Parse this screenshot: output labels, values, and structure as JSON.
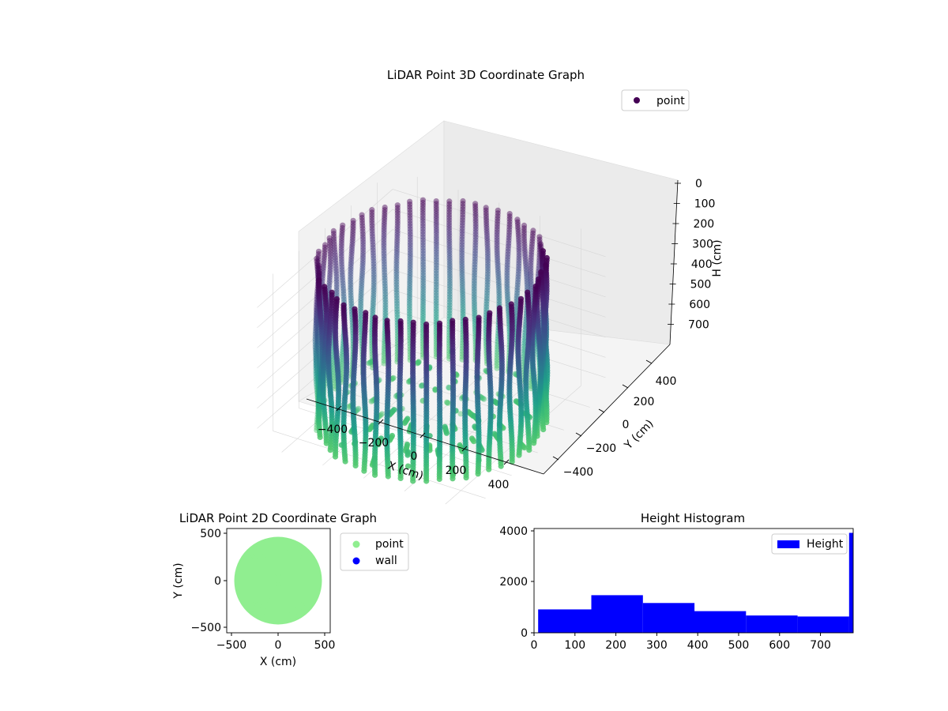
{
  "chart_data": [
    {
      "type": "scatter3d",
      "title": "LiDAR Point 3D Coordinate Graph",
      "xlabel": "X (cm)",
      "ylabel": "Y (cm)",
      "zlabel": "H (cm)",
      "xlim": [
        -520,
        520
      ],
      "ylim": [
        -520,
        520
      ],
      "zlim": [
        0,
        780
      ],
      "z_inverted": true,
      "x_ticks": [
        "−400",
        "−200",
        "0",
        "200",
        "400"
      ],
      "y_ticks": [
        "−400",
        "−200",
        "0",
        "200",
        "400"
      ],
      "z_ticks": [
        "0",
        "100",
        "200",
        "300",
        "400",
        "500",
        "600",
        "700"
      ],
      "colormap": "viridis (purple at H=0, green at bottom)",
      "legend": {
        "position": "top-right",
        "entries": [
          "point"
        ]
      },
      "series": [
        {
          "name": "point",
          "color_top": "#440154",
          "color_bottom": "#2db27d",
          "description_shape": "cylindrical wall of radius about 470, height 0 to 780",
          "radius": 470,
          "hmin": 0,
          "hmax": 780
        }
      ]
    },
    {
      "type": "scatter",
      "title": "LiDAR Point 2D Coordinate Graph",
      "xlabel": "X (cm)",
      "ylabel": "Y (cm)",
      "xlim": [
        -550,
        550
      ],
      "ylim": [
        -550,
        550
      ],
      "x_ticks": [
        "−500",
        "0",
        "500"
      ],
      "y_ticks": [
        "−500",
        "0",
        "500"
      ],
      "legend": {
        "position": "outside-right",
        "entries": [
          "point",
          "wall"
        ]
      },
      "series": [
        {
          "name": "point",
          "color": "#90ee90",
          "radius": 470
        },
        {
          "name": "wall",
          "color": "#0000ff",
          "points": []
        }
      ]
    },
    {
      "type": "bar",
      "title": "Height Histogram",
      "xlabel": "",
      "ylabel": "",
      "xlim": [
        0,
        780
      ],
      "ylim": [
        0,
        4100
      ],
      "x_ticks": [
        "0",
        "100",
        "200",
        "300",
        "400",
        "500",
        "600",
        "700"
      ],
      "y_ticks": [
        "0",
        "2000",
        "4000"
      ],
      "legend": {
        "position": "top-right",
        "entries": [
          "Height"
        ]
      },
      "series": [
        {
          "name": "Height",
          "color": "#0000ff",
          "bins": [
            {
              "x0": 10,
              "x1": 140,
              "value": 920
            },
            {
              "x0": 140,
              "x1": 266,
              "value": 1480
            },
            {
              "x0": 266,
              "x1": 392,
              "value": 1170
            },
            {
              "x0": 392,
              "x1": 518,
              "value": 850
            },
            {
              "x0": 518,
              "x1": 644,
              "value": 680
            },
            {
              "x0": 644,
              "x1": 770,
              "value": 640
            },
            {
              "x0": 770,
              "x1": 780,
              "value": 3930
            }
          ]
        }
      ]
    }
  ]
}
